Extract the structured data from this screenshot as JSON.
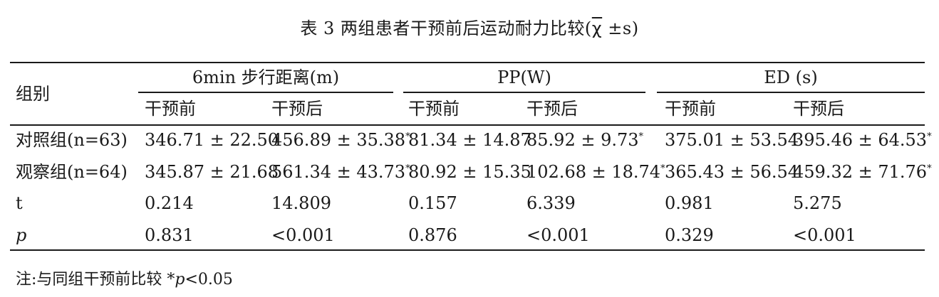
{
  "table": {
    "caption_prefix": "表 3  两组患者干预前后运动耐力比较(",
    "caption_chi": "χ",
    "caption_suffix": " ±s)",
    "row_header_label": "组别",
    "groups": [
      {
        "label": "6min 步行距离(m)"
      },
      {
        "label": "PP(W)"
      },
      {
        "label": "ED (s)"
      }
    ],
    "subheaders": [
      "干预前",
      "干预后",
      "干预前",
      "干预后",
      "干预前",
      "干预后"
    ],
    "rows": [
      {
        "label": "对照组(n=63)",
        "cells": [
          {
            "v": "346.71 ± 22.50",
            "mark": ""
          },
          {
            "v": "456.89 ± 35.38",
            "mark": "*"
          },
          {
            "v": "81.34 ± 14.87",
            "mark": ""
          },
          {
            "v": "85.92 ± 9.73",
            "mark": "*"
          },
          {
            "v": "375.01 ± 53.54",
            "mark": ""
          },
          {
            "v": "395.46 ± 64.53",
            "mark": "*"
          }
        ]
      },
      {
        "label": "观察组(n=64)",
        "cells": [
          {
            "v": "345.87 ± 21.68",
            "mark": ""
          },
          {
            "v": "561.34 ± 43.73",
            "mark": "*"
          },
          {
            "v": "80.92 ± 15.35",
            "mark": ""
          },
          {
            "v": "102.68 ± 18.74",
            "mark": "*"
          },
          {
            "v": "365.43 ± 56.54",
            "mark": ""
          },
          {
            "v": "459.32 ± 71.76",
            "mark": "*"
          }
        ]
      },
      {
        "label": "t",
        "italic": false,
        "cells": [
          {
            "v": "0.214",
            "mark": ""
          },
          {
            "v": "14.809",
            "mark": ""
          },
          {
            "v": "0.157",
            "mark": ""
          },
          {
            "v": "6.339",
            "mark": ""
          },
          {
            "v": "0.981",
            "mark": ""
          },
          {
            "v": "5.275",
            "mark": ""
          }
        ]
      },
      {
        "label": "p",
        "italic": true,
        "cells": [
          {
            "v": "0.831",
            "mark": ""
          },
          {
            "v": "<0.001",
            "mark": ""
          },
          {
            "v": "0.876",
            "mark": ""
          },
          {
            "v": "<0.001",
            "mark": ""
          },
          {
            "v": "0.329",
            "mark": ""
          },
          {
            "v": "<0.001",
            "mark": ""
          }
        ]
      }
    ],
    "footnote_prefix": "注:与同组干预前比较 *",
    "footnote_p": "p",
    "footnote_suffix": "<0.05"
  }
}
